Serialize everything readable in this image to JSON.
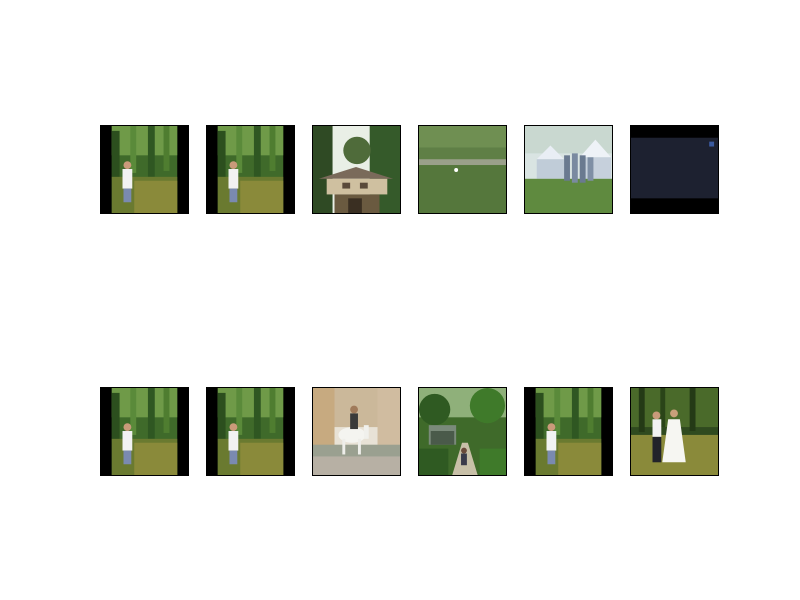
{
  "figure": {
    "rows": [
      {
        "name": "top",
        "tiles": [
          {
            "scene": "man-fishing-pond",
            "icon": "person-by-pond-icon"
          },
          {
            "scene": "man-fishing-pond",
            "icon": "person-by-pond-icon"
          },
          {
            "scene": "house-in-trees",
            "icon": "house-icon"
          },
          {
            "scene": "golf-green",
            "icon": "grass-field-icon"
          },
          {
            "scene": "tents-crowd",
            "icon": "tent-icon"
          },
          {
            "scene": "dark-frame",
            "icon": "dark-frame-icon"
          }
        ]
      },
      {
        "name": "bottom",
        "tiles": [
          {
            "scene": "man-fishing-pond",
            "icon": "person-by-pond-icon"
          },
          {
            "scene": "man-fishing-pond",
            "icon": "person-by-pond-icon"
          },
          {
            "scene": "white-horse-rider",
            "icon": "horse-icon"
          },
          {
            "scene": "garden-path",
            "icon": "garden-path-icon"
          },
          {
            "scene": "man-fishing-pond",
            "icon": "person-by-pond-icon"
          },
          {
            "scene": "couple-in-meadow",
            "icon": "couple-icon"
          }
        ]
      }
    ]
  }
}
